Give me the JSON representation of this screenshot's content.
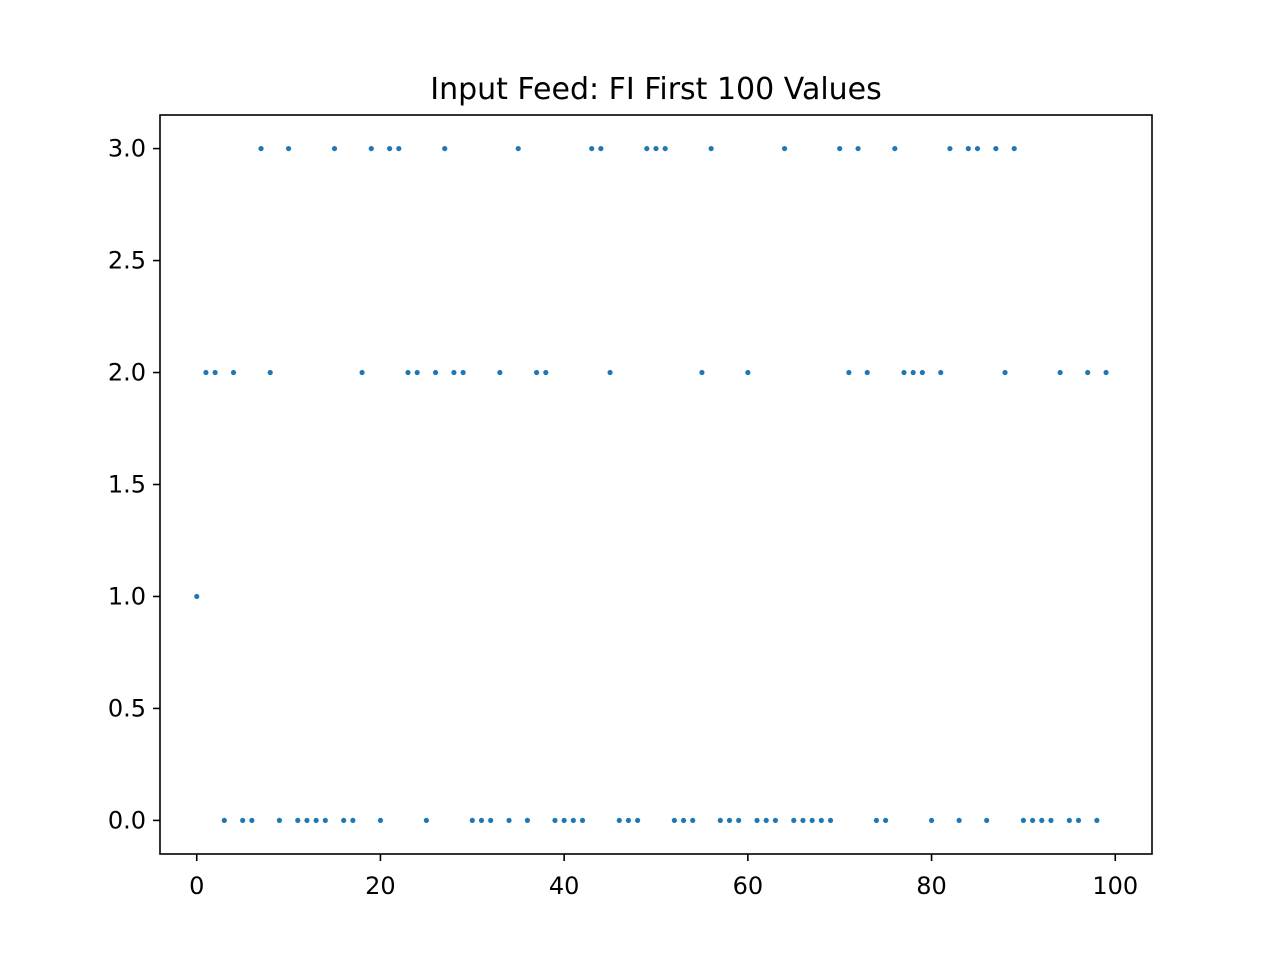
{
  "chart_data": {
    "type": "scatter",
    "title": "Input Feed: FI First 100 Values",
    "xlabel": "",
    "ylabel": "",
    "xlim": [
      -4,
      104
    ],
    "ylim": [
      -0.15,
      3.15
    ],
    "x_ticks": [
      0,
      20,
      40,
      60,
      80,
      100
    ],
    "x_tick_labels": [
      "0",
      "20",
      "40",
      "60",
      "80",
      "100"
    ],
    "y_ticks": [
      0.0,
      0.5,
      1.0,
      1.5,
      2.0,
      2.5,
      3.0
    ],
    "y_tick_labels": [
      "0.0",
      "0.5",
      "1.0",
      "1.5",
      "2.0",
      "2.5",
      "3.0"
    ],
    "grid": false,
    "color": "#1f77b4",
    "x": [
      0,
      1,
      2,
      3,
      4,
      5,
      6,
      7,
      8,
      9,
      10,
      11,
      12,
      13,
      14,
      15,
      16,
      17,
      18,
      19,
      20,
      21,
      22,
      23,
      24,
      25,
      26,
      27,
      28,
      29,
      30,
      31,
      32,
      33,
      34,
      35,
      36,
      37,
      38,
      39,
      40,
      41,
      42,
      43,
      44,
      45,
      46,
      47,
      48,
      49,
      50,
      51,
      52,
      53,
      54,
      55,
      56,
      57,
      58,
      59,
      60,
      61,
      62,
      63,
      64,
      65,
      66,
      67,
      68,
      69,
      70,
      71,
      72,
      73,
      74,
      75,
      76,
      77,
      78,
      79,
      80,
      81,
      82,
      83,
      84,
      85,
      86,
      87,
      88,
      89,
      90,
      91,
      92,
      93,
      94,
      95,
      96,
      97,
      98,
      99
    ],
    "y": [
      1,
      2,
      2,
      0,
      2,
      0,
      0,
      3,
      2,
      0,
      3,
      0,
      0,
      0,
      0,
      3,
      0,
      0,
      2,
      3,
      0,
      3,
      3,
      2,
      2,
      0,
      2,
      3,
      2,
      2,
      0,
      0,
      0,
      2,
      0,
      3,
      0,
      2,
      2,
      0,
      0,
      0,
      0,
      3,
      3,
      2,
      0,
      0,
      0,
      3,
      3,
      3,
      0,
      0,
      0,
      2,
      3,
      0,
      0,
      0,
      2,
      0,
      0,
      0,
      3,
      0,
      0,
      0,
      0,
      0,
      3,
      2,
      3,
      2,
      0,
      0,
      3,
      2,
      2,
      2,
      0,
      2,
      3,
      0,
      3,
      3,
      0,
      3,
      2,
      3,
      0,
      0,
      0,
      0,
      2,
      0,
      0,
      2,
      0,
      2
    ]
  }
}
